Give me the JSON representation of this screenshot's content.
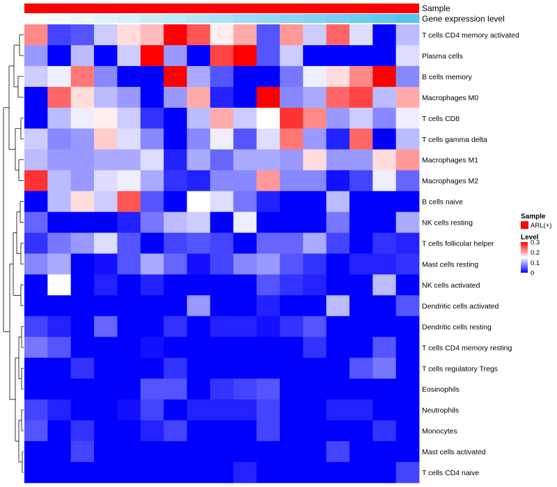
{
  "chart_data": {
    "type": "heatmap",
    "title": "",
    "annotation_tracks": [
      {
        "label": "Sample",
        "color": "#ff0000"
      },
      {
        "label": "Gene expression level",
        "gradient": [
          "#ffffff",
          "#56c3ee"
        ]
      }
    ],
    "rows": [
      "T cells CD4 memory activated",
      "Plasma cells",
      "B cells memory",
      "Macrophages M0",
      "T cells CD8",
      "T cells gamma delta",
      "Macrophages M1",
      "Macrophages M2",
      "B cells naive",
      "NK cells resting",
      "T cells follicular helper",
      "Mast cells resting",
      "NK cells activated",
      "Dendritic cells activated",
      "Dendritic cells resting",
      "T cells CD4 memory resting",
      "T cells regulatory  Tregs",
      "Eosinophils",
      "Neutrophils",
      "Monocytes",
      "Mast cells activated",
      "T cells CD4 naive"
    ],
    "values": [
      [
        0.22,
        0.04,
        0.05,
        0.12,
        0.17,
        0.19,
        0.3,
        0.25,
        0.16,
        0.2,
        0.05,
        0.21,
        0.12,
        0.24,
        0.13,
        0.0,
        0.11
      ],
      [
        0.09,
        0.0,
        0.11,
        0.0,
        0.12,
        0.3,
        0.09,
        0.0,
        0.26,
        0.3,
        0.05,
        0.12,
        0.0,
        0.0,
        0.0,
        0.0,
        0.13
      ],
      [
        0.12,
        0.14,
        0.23,
        0.08,
        0.0,
        0.0,
        0.3,
        0.1,
        0.05,
        0.0,
        0.0,
        0.07,
        0.14,
        0.17,
        0.22,
        0.3,
        0.08
      ],
      [
        0.0,
        0.24,
        0.17,
        0.11,
        0.09,
        0.0,
        0.09,
        0.2,
        0.02,
        0.0,
        0.3,
        0.08,
        0.1,
        0.24,
        0.26,
        0.11,
        0.2
      ],
      [
        0.0,
        0.11,
        0.14,
        0.16,
        0.12,
        0.03,
        0.0,
        0.11,
        0.2,
        0.12,
        0.15,
        0.27,
        0.22,
        0.09,
        0.12,
        0.08,
        0.14
      ],
      [
        0.12,
        0.08,
        0.09,
        0.18,
        0.13,
        0.08,
        0.0,
        0.08,
        0.14,
        0.05,
        0.13,
        0.23,
        0.09,
        0.02,
        0.24,
        0.0,
        0.11
      ],
      [
        0.11,
        0.09,
        0.09,
        0.1,
        0.1,
        0.13,
        0.02,
        0.1,
        0.06,
        0.1,
        0.1,
        0.09,
        0.17,
        0.09,
        0.09,
        0.17,
        0.21
      ],
      [
        0.27,
        0.11,
        0.09,
        0.13,
        0.14,
        0.1,
        0.03,
        0.02,
        0.08,
        0.08,
        0.21,
        0.08,
        0.08,
        0.01,
        0.04,
        0.14,
        0.06
      ],
      [
        0.0,
        0.11,
        0.17,
        0.12,
        0.25,
        0.05,
        0.0,
        0.15,
        0.13,
        0.07,
        0.02,
        0.0,
        0.0,
        0.11,
        0.0,
        0.0,
        0.0
      ],
      [
        0.06,
        0.0,
        0.0,
        0.0,
        0.02,
        0.07,
        0.11,
        0.12,
        0.0,
        0.14,
        0.0,
        0.0,
        0.0,
        0.07,
        0.0,
        0.0,
        0.1
      ],
      [
        0.03,
        0.07,
        0.09,
        0.13,
        0.05,
        0.0,
        0.04,
        0.05,
        0.04,
        0.0,
        0.06,
        0.06,
        0.1,
        0.04,
        0.0,
        0.03,
        0.02
      ],
      [
        0.08,
        0.1,
        0.0,
        0.01,
        0.05,
        0.1,
        0.06,
        0.01,
        0.04,
        0.08,
        0.09,
        0.05,
        0.03,
        0.0,
        0.02,
        0.02,
        0.03
      ],
      [
        0.0,
        0.15,
        0.0,
        0.02,
        0.0,
        0.02,
        0.0,
        0.0,
        0.0,
        0.0,
        0.05,
        0.03,
        0.02,
        0.0,
        0.0,
        0.11,
        0.0
      ],
      [
        0.0,
        0.0,
        0.0,
        0.0,
        0.0,
        0.0,
        0.0,
        0.09,
        0.0,
        0.0,
        0.02,
        0.0,
        0.0,
        0.11,
        0.0,
        0.0,
        0.05
      ],
      [
        0.04,
        0.02,
        0.0,
        0.06,
        0.0,
        0.0,
        0.03,
        0.0,
        0.02,
        0.02,
        0.01,
        0.03,
        0.05,
        0.0,
        0.0,
        0.0,
        0.0
      ],
      [
        0.07,
        0.05,
        0.0,
        0.0,
        0.0,
        0.01,
        0.0,
        0.0,
        0.0,
        0.0,
        0.0,
        0.0,
        0.03,
        0.0,
        0.0,
        0.05,
        0.0
      ],
      [
        0.0,
        0.0,
        0.03,
        0.0,
        0.0,
        0.0,
        0.03,
        0.0,
        0.0,
        0.0,
        0.0,
        0.0,
        0.0,
        0.0,
        0.05,
        0.07,
        0.0
      ],
      [
        0.0,
        0.0,
        0.0,
        0.0,
        0.0,
        0.05,
        0.05,
        0.0,
        0.03,
        0.04,
        0.05,
        0.0,
        0.0,
        0.0,
        0.0,
        0.0,
        0.0
      ],
      [
        0.04,
        0.02,
        0.0,
        0.0,
        0.01,
        0.04,
        0.0,
        0.02,
        0.02,
        0.02,
        0.04,
        0.0,
        0.0,
        0.02,
        0.02,
        0.0,
        0.0
      ],
      [
        0.05,
        0.0,
        0.03,
        0.0,
        0.0,
        0.02,
        0.04,
        0.0,
        0.0,
        0.0,
        0.04,
        0.0,
        0.0,
        0.0,
        0.0,
        0.03,
        0.0
      ],
      [
        0.0,
        0.0,
        0.04,
        0.0,
        0.0,
        0.0,
        0.0,
        0.0,
        0.0,
        0.0,
        0.0,
        0.0,
        0.0,
        0.04,
        0.0,
        0.0,
        0.0
      ],
      [
        0.0,
        0.0,
        0.0,
        0.0,
        0.0,
        0.0,
        0.0,
        0.0,
        0.0,
        0.02,
        0.0,
        0.0,
        0.0,
        0.0,
        0.0,
        0.0,
        0.04
      ]
    ],
    "color_scale": {
      "min": 0,
      "mid": 0.15,
      "max": 0.3,
      "low": "#0000ff",
      "midColor": "#ffffff",
      "high": "#ff0000"
    },
    "legend": {
      "sample_title": "Sample",
      "sample_entry": "ARL(+)",
      "level_title": "Level",
      "level_ticks": [
        "0.3",
        "0.2",
        "0.1",
        "0"
      ],
      "placement": "right"
    },
    "dendrogram": "left"
  }
}
